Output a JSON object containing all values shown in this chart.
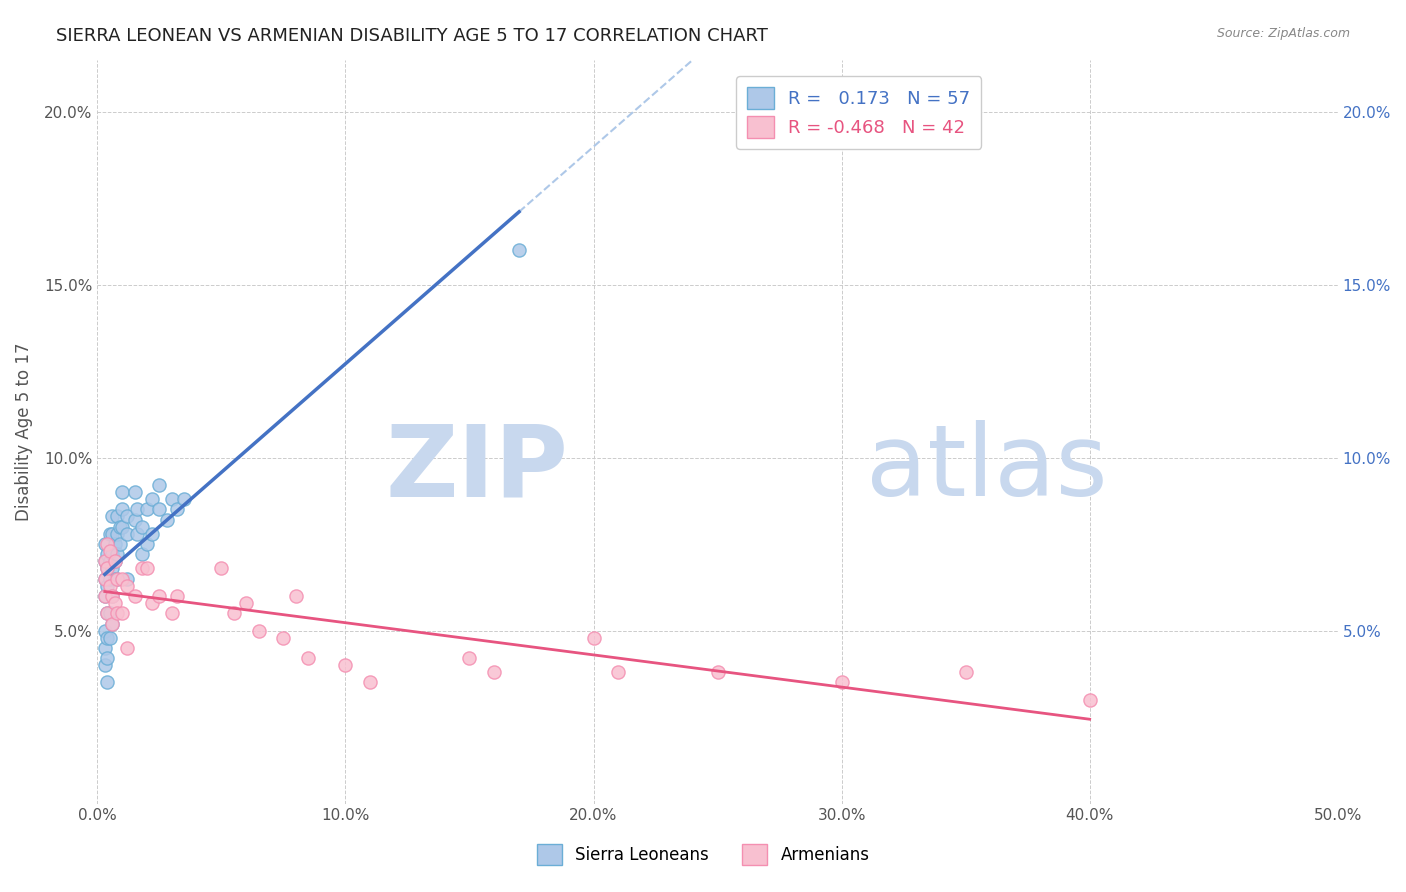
{
  "title": "SIERRA LEONEAN VS ARMENIAN DISABILITY AGE 5 TO 17 CORRELATION CHART",
  "source": "Source: ZipAtlas.com",
  "ylabel": "Disability Age 5 to 17",
  "xlim": [
    0.0,
    0.5
  ],
  "ylim": [
    0.0,
    0.215
  ],
  "x_ticks": [
    0.0,
    0.1,
    0.2,
    0.3,
    0.4,
    0.5
  ],
  "x_tick_labels": [
    "0.0%",
    "10.0%",
    "20.0%",
    "30.0%",
    "40.0%",
    "50.0%"
  ],
  "y_ticks": [
    0.0,
    0.05,
    0.1,
    0.15,
    0.2
  ],
  "y_tick_labels": [
    "",
    "5.0%",
    "10.0%",
    "15.0%",
    "20.0%"
  ],
  "right_y_ticks": [
    0.05,
    0.1,
    0.15,
    0.2
  ],
  "right_y_tick_labels": [
    "5.0%",
    "10.0%",
    "15.0%",
    "20.0%"
  ],
  "sl_color": "#6baed6",
  "sl_fill": "#aec8e8",
  "arm_color": "#f48fb1",
  "arm_fill": "#f8c0d0",
  "sl_R": 0.173,
  "sl_N": 57,
  "arm_R": -0.468,
  "arm_N": 42,
  "legend_sl_label": "Sierra Leoneans",
  "legend_arm_label": "Armenians",
  "sl_trend_color": "#4472c4",
  "arm_trend_color": "#e75480",
  "sl_dash_color": "#aec8e8",
  "sl_points_x": [
    0.003,
    0.003,
    0.003,
    0.003,
    0.003,
    0.003,
    0.003,
    0.004,
    0.004,
    0.004,
    0.004,
    0.004,
    0.004,
    0.004,
    0.005,
    0.005,
    0.005,
    0.005,
    0.005,
    0.006,
    0.006,
    0.006,
    0.006,
    0.006,
    0.006,
    0.007,
    0.007,
    0.007,
    0.008,
    0.008,
    0.008,
    0.008,
    0.009,
    0.009,
    0.01,
    0.01,
    0.01,
    0.012,
    0.012,
    0.012,
    0.015,
    0.015,
    0.016,
    0.016,
    0.018,
    0.018,
    0.02,
    0.02,
    0.022,
    0.022,
    0.025,
    0.025,
    0.028,
    0.03,
    0.032,
    0.035,
    0.17
  ],
  "sl_points_y": [
    0.06,
    0.065,
    0.07,
    0.075,
    0.05,
    0.045,
    0.04,
    0.063,
    0.068,
    0.072,
    0.055,
    0.048,
    0.042,
    0.035,
    0.065,
    0.07,
    0.078,
    0.055,
    0.048,
    0.068,
    0.072,
    0.078,
    0.083,
    0.06,
    0.052,
    0.07,
    0.075,
    0.065,
    0.072,
    0.078,
    0.083,
    0.065,
    0.075,
    0.08,
    0.08,
    0.085,
    0.09,
    0.083,
    0.078,
    0.065,
    0.082,
    0.09,
    0.078,
    0.085,
    0.08,
    0.072,
    0.085,
    0.075,
    0.088,
    0.078,
    0.085,
    0.092,
    0.082,
    0.088,
    0.085,
    0.088,
    0.16
  ],
  "arm_points_x": [
    0.003,
    0.003,
    0.003,
    0.004,
    0.004,
    0.004,
    0.005,
    0.005,
    0.006,
    0.006,
    0.007,
    0.007,
    0.008,
    0.008,
    0.01,
    0.01,
    0.012,
    0.012,
    0.015,
    0.018,
    0.02,
    0.022,
    0.025,
    0.03,
    0.032,
    0.05,
    0.055,
    0.06,
    0.065,
    0.075,
    0.08,
    0.085,
    0.1,
    0.11,
    0.15,
    0.16,
    0.2,
    0.21,
    0.25,
    0.3,
    0.35,
    0.4
  ],
  "arm_points_y": [
    0.07,
    0.065,
    0.06,
    0.075,
    0.068,
    0.055,
    0.073,
    0.063,
    0.06,
    0.052,
    0.07,
    0.058,
    0.065,
    0.055,
    0.065,
    0.055,
    0.063,
    0.045,
    0.06,
    0.068,
    0.068,
    0.058,
    0.06,
    0.055,
    0.06,
    0.068,
    0.055,
    0.058,
    0.05,
    0.048,
    0.06,
    0.042,
    0.04,
    0.035,
    0.042,
    0.038,
    0.048,
    0.038,
    0.038,
    0.035,
    0.038,
    0.03
  ],
  "watermark_zip": "ZIP",
  "watermark_atlas": "atlas",
  "watermark_color_zip": "#c8d8ee",
  "watermark_color_atlas": "#c8d8ee",
  "background_color": "#ffffff",
  "grid_color": "#cccccc"
}
